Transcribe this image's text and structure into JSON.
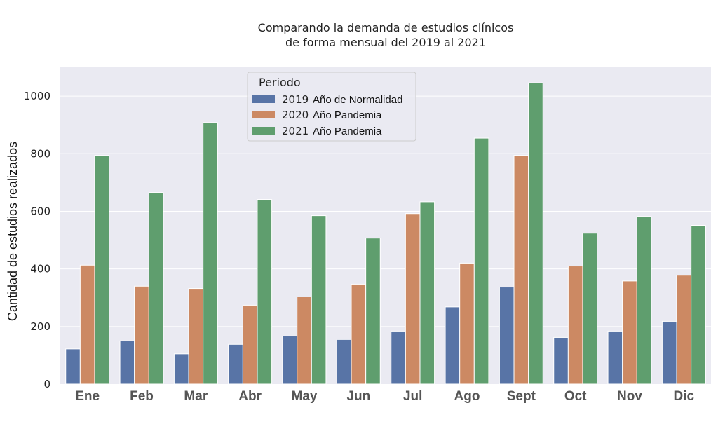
{
  "chart_data": {
    "type": "bar",
    "title": "Comparando la demanda de estudios clínicos",
    "subtitle": "de forma mensual  del 2019 al 2021",
    "xlabel": "",
    "ylabel": "Cantidad de estudios realizados",
    "categories": [
      "Ene",
      "Feb",
      "Mar",
      "Abr",
      "May",
      "Jun",
      "Jul",
      "Ago",
      "Sept",
      "Oct",
      "Nov",
      "Dic"
    ],
    "ylim": [
      0,
      1100
    ],
    "yticks": [
      0,
      200,
      400,
      600,
      800,
      1000
    ],
    "grid": true,
    "legend": {
      "title": "Periodo",
      "placement": "top-center",
      "entries": [
        {
          "year": "2019",
          "desc": "Año de Normalidad"
        },
        {
          "year": "2020",
          "desc": "Año Pandemia"
        },
        {
          "year": "2021",
          "desc": "Año Pandemia"
        }
      ]
    },
    "series": [
      {
        "name": "2019 Año de Normalidad",
        "color": "#5874a6",
        "values": [
          122,
          150,
          105,
          138,
          167,
          155,
          184,
          268,
          337,
          162,
          184,
          218
        ]
      },
      {
        "name": "2020 Año Pandemia",
        "color": "#cc8963",
        "values": [
          413,
          340,
          332,
          274,
          303,
          347,
          592,
          420,
          794,
          410,
          358,
          378
        ]
      },
      {
        "name": "2021 Año Pandemia",
        "color": "#5f9e6e",
        "values": [
          794,
          665,
          908,
          641,
          585,
          507,
          633,
          854,
          1046,
          524,
          582,
          551
        ]
      }
    ],
    "colors": {
      "background": "#eaeaf2",
      "grid": "#ffffff"
    }
  }
}
